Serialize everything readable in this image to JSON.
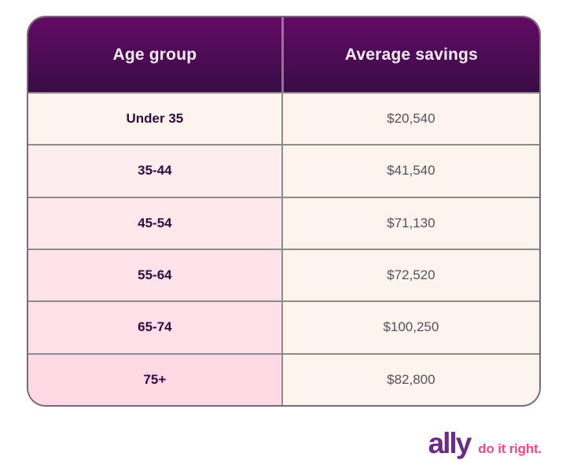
{
  "chart_data": {
    "type": "table",
    "columns": [
      "Age group",
      "Average savings"
    ],
    "categories": [
      "Under 35",
      "35-44",
      "45-54",
      "55-64",
      "65-74",
      "75+"
    ],
    "values": [
      20540,
      41540,
      71130,
      72520,
      100250,
      82800
    ],
    "values_formatted": [
      "$20,540",
      "$41,540",
      "$71,130",
      "$72,520",
      "$100,250",
      "$82,800"
    ]
  },
  "footer": {
    "brand": "ally",
    "tagline": "do it right."
  },
  "colors": {
    "header_gradient_top": "#620b64",
    "header_gradient_bottom": "#390c45",
    "header_text": "#f6ecf6",
    "age_cell_backgrounds": [
      "#fdf4ee",
      "#fdedee",
      "#fee8ec",
      "#fee3ea",
      "#ffdfe8",
      "#ffd9e4"
    ],
    "value_cell_background": "#fdf4ee",
    "grid_line": "#8e8a8d",
    "age_text": "#330b3e",
    "value_text": "#56505c",
    "brand_purple": "#6d2b84",
    "tagline_pink": "#ee4a80"
  }
}
